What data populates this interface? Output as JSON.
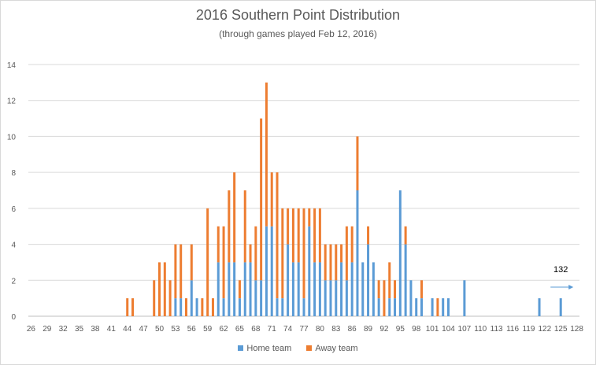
{
  "chart_data": {
    "type": "bar",
    "stacked": true,
    "title": "2016 Southern Point Distribution",
    "subtitle": "(through games played Feb 12, 2016)",
    "xlabel": "",
    "ylabel": "",
    "ylim": [
      0,
      14
    ],
    "yticks": [
      0,
      2,
      4,
      6,
      8,
      10,
      12,
      14
    ],
    "xticks": [
      26,
      29,
      32,
      35,
      38,
      41,
      44,
      47,
      50,
      53,
      56,
      59,
      62,
      65,
      68,
      71,
      74,
      77,
      80,
      83,
      86,
      89,
      92,
      95,
      98,
      101,
      104,
      107,
      110,
      113,
      116,
      119,
      122,
      125,
      128
    ],
    "grid": true,
    "legend_position": "bottom",
    "x": [
      44,
      45,
      49,
      50,
      51,
      52,
      53,
      54,
      55,
      56,
      57,
      58,
      59,
      60,
      61,
      62,
      63,
      64,
      65,
      66,
      67,
      68,
      69,
      70,
      71,
      72,
      73,
      74,
      75,
      76,
      77,
      78,
      79,
      80,
      81,
      82,
      83,
      84,
      85,
      86,
      87,
      88,
      89,
      90,
      91,
      92,
      93,
      94,
      95,
      96,
      97,
      98,
      99,
      101,
      102,
      103,
      104,
      107,
      121,
      125
    ],
    "series": [
      {
        "name": "Home team",
        "color": "#5b9bd5",
        "values": [
          0,
          0,
          0,
          0,
          0,
          0,
          1,
          1,
          0,
          2,
          1,
          0,
          0,
          0,
          3,
          1,
          3,
          3,
          1,
          3,
          3,
          2,
          2,
          5,
          5,
          1,
          1,
          4,
          3,
          3,
          1,
          5,
          3,
          3,
          2,
          2,
          2,
          3,
          2,
          3,
          7,
          3,
          4,
          3,
          1,
          0,
          1,
          1,
          7,
          4,
          2,
          1,
          1,
          1,
          0,
          1,
          1,
          2,
          1,
          1
        ]
      },
      {
        "name": "Away team",
        "color": "#ed7d31",
        "values": [
          1,
          1,
          2,
          3,
          3,
          2,
          3,
          3,
          1,
          2,
          0,
          1,
          6,
          1,
          2,
          4,
          4,
          5,
          1,
          4,
          1,
          3,
          9,
          8,
          3,
          7,
          5,
          2,
          3,
          3,
          5,
          1,
          3,
          3,
          2,
          2,
          2,
          1,
          3,
          2,
          3,
          0,
          1,
          0,
          1,
          2,
          2,
          1,
          0,
          1,
          0,
          0,
          1,
          0,
          1,
          0,
          0,
          0,
          0,
          0
        ]
      }
    ],
    "annotations": [
      {
        "text": "132",
        "arrow": "right"
      }
    ]
  }
}
